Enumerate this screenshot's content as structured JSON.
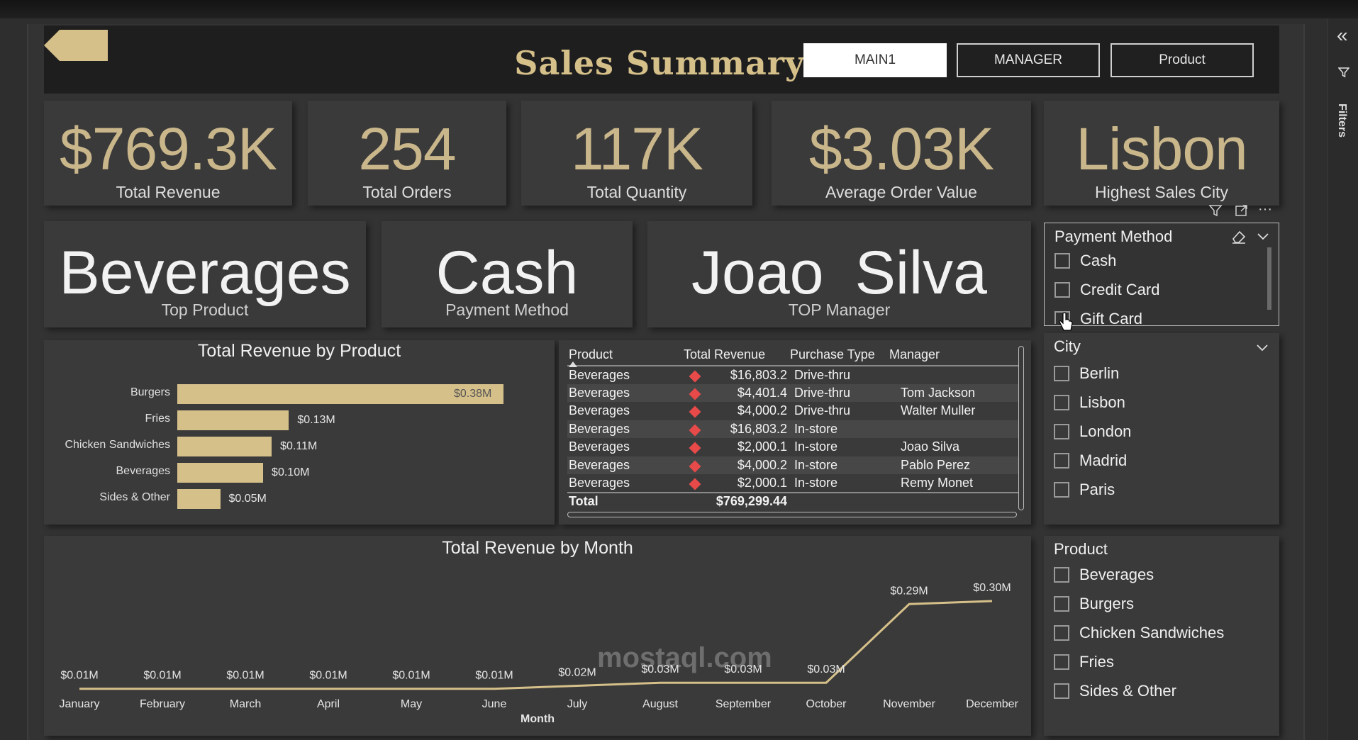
{
  "header": {
    "title": "Sales Summary",
    "nav": [
      "MAIN1",
      "MANAGER",
      "Product"
    ]
  },
  "right_pane": {
    "label": "Filters",
    "collapse_icon": "double-chevron-left-icon"
  },
  "kpis": [
    {
      "value": "$769.3K",
      "label": "Total Revenue"
    },
    {
      "value": "254",
      "label": "Total Orders"
    },
    {
      "value": "117K",
      "label": "Total Quantity"
    },
    {
      "value": "$3.03K",
      "label": "Average Order Value"
    },
    {
      "value": "Lisbon",
      "label": "Highest Sales City"
    }
  ],
  "cards": [
    {
      "value": "Beverages",
      "label": "Top Product"
    },
    {
      "value": "Cash",
      "label": "Payment Method"
    },
    {
      "value_first": "Joao",
      "value_last": "Silva",
      "label": "TOP Manager"
    }
  ],
  "bar_chart": {
    "title": "Total Revenue by Product",
    "categories": [
      "Burgers",
      "Fries",
      "Chicken Sandwiches",
      "Beverages",
      "Sides & Other"
    ],
    "labels": [
      "$0.38M",
      "$0.13M",
      "$0.11M",
      "$0.10M",
      "$0.05M"
    ]
  },
  "table": {
    "columns": [
      "Product",
      "Total Revenue",
      "Purchase Type",
      "Manager"
    ],
    "rows": [
      [
        "Beverages",
        "$16,803.2",
        "Drive-thru",
        ""
      ],
      [
        "Beverages",
        "$4,401.4",
        "Drive-thru",
        "Tom Jackson"
      ],
      [
        "Beverages",
        "$4,000.2",
        "Drive-thru",
        "Walter Muller"
      ],
      [
        "Beverages",
        "$16,803.2",
        "In-store",
        ""
      ],
      [
        "Beverages",
        "$2,000.1",
        "In-store",
        "Joao Silva"
      ],
      [
        "Beverages",
        "$4,000.2",
        "In-store",
        "Pablo Perez"
      ],
      [
        "Beverages",
        "$2,000.1",
        "In-store",
        "Remy Monet"
      ]
    ],
    "total_label": "Total",
    "total_value": "$769,299.44",
    "flag_color": "#e84a4a"
  },
  "line_chart": {
    "title": "Total Revenue by Month",
    "xlabel": "Month",
    "months": [
      "January",
      "February",
      "March",
      "April",
      "May",
      "June",
      "July",
      "August",
      "September",
      "October",
      "November",
      "December"
    ],
    "labels": [
      "$0.01M",
      "$0.01M",
      "$0.01M",
      "$0.01M",
      "$0.01M",
      "$0.01M",
      "$0.02M",
      "$0.03M",
      "$0.03M",
      "$0.03M",
      "$0.29M",
      "$0.30M"
    ]
  },
  "chart_data": [
    {
      "type": "bar",
      "title": "Total Revenue by Product",
      "categories": [
        "Burgers",
        "Fries",
        "Chicken Sandwiches",
        "Beverages",
        "Sides & Other"
      ],
      "values": [
        0.38,
        0.13,
        0.11,
        0.1,
        0.05
      ],
      "unit": "$M"
    },
    {
      "type": "line",
      "title": "Total Revenue by Month",
      "xlabel": "Month",
      "x": [
        "January",
        "February",
        "March",
        "April",
        "May",
        "June",
        "July",
        "August",
        "September",
        "October",
        "November",
        "December"
      ],
      "values": [
        0.01,
        0.01,
        0.01,
        0.01,
        0.01,
        0.01,
        0.02,
        0.03,
        0.03,
        0.03,
        0.29,
        0.3
      ],
      "unit": "$M"
    }
  ],
  "slicers": {
    "payment": {
      "title": "Payment Method",
      "items": [
        "Cash",
        "Credit Card",
        "Gift Card"
      ]
    },
    "city": {
      "title": "City",
      "items": [
        "Berlin",
        "Lisbon",
        "London",
        "Madrid",
        "Paris"
      ]
    },
    "product": {
      "title": "Product",
      "items": [
        "Beverages",
        "Burgers",
        "Chicken Sandwiches",
        "Fries",
        "Sides & Other"
      ]
    }
  },
  "watermark": "mostaql.com",
  "colors": {
    "accent": "#d6c08a",
    "kpi": "#c9b68a",
    "bg": "#333333",
    "card": "#3a3a3a"
  }
}
